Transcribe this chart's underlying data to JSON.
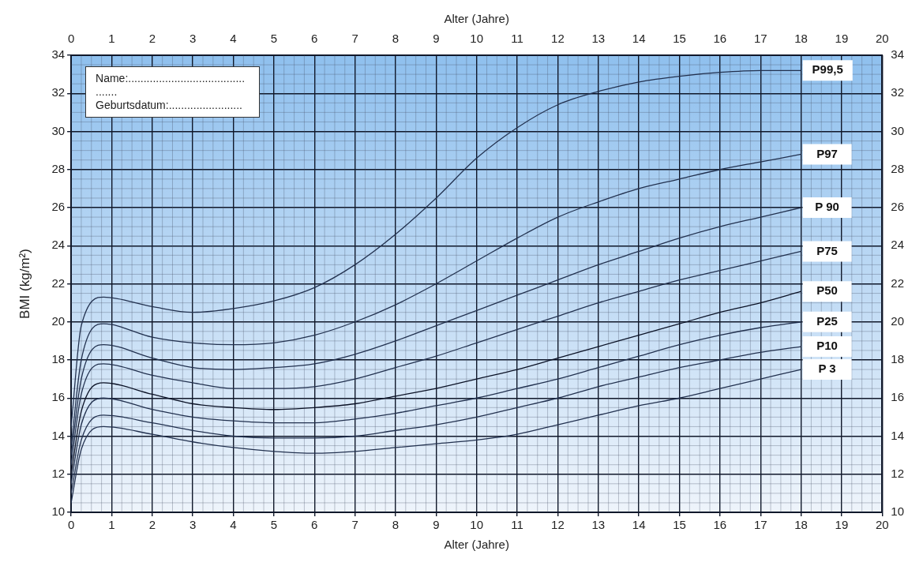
{
  "chart_data": {
    "type": "line",
    "xlabel": "Alter (Jahre)",
    "x2label": "Alter (Jahre)",
    "ylabel": "BMI (kg/m²)",
    "x": [
      0,
      0.25,
      0.8,
      2,
      3,
      4,
      5,
      6,
      7,
      8,
      9,
      10,
      11,
      12,
      13,
      14,
      15,
      16,
      17,
      18
    ],
    "series": [
      {
        "name": "P99,5",
        "color": "#22314f",
        "values": [
          14.5,
          19.8,
          21.3,
          20.8,
          20.5,
          20.7,
          21.1,
          21.8,
          23.0,
          24.6,
          26.5,
          28.6,
          30.2,
          31.4,
          32.1,
          32.6,
          32.9,
          33.1,
          33.2,
          33.2
        ]
      },
      {
        "name": "P97",
        "color": "#22314f",
        "values": [
          13.5,
          18.0,
          19.9,
          19.2,
          18.9,
          18.8,
          18.9,
          19.3,
          20.0,
          20.9,
          22.0,
          23.2,
          24.4,
          25.5,
          26.3,
          27.0,
          27.5,
          28.0,
          28.4,
          28.8
        ]
      },
      {
        "name": "P 90",
        "color": "#22314f",
        "values": [
          13.0,
          17.0,
          18.8,
          18.1,
          17.6,
          17.5,
          17.6,
          17.8,
          18.3,
          19.0,
          19.8,
          20.6,
          21.4,
          22.2,
          23.0,
          23.7,
          24.4,
          25.0,
          25.5,
          26.0
        ]
      },
      {
        "name": "P75",
        "color": "#22314f",
        "values": [
          12.5,
          16.2,
          17.8,
          17.2,
          16.8,
          16.5,
          16.5,
          16.6,
          17.0,
          17.6,
          18.2,
          18.9,
          19.6,
          20.3,
          21.0,
          21.6,
          22.2,
          22.7,
          23.2,
          23.7
        ]
      },
      {
        "name": "P50",
        "color": "#0b1226",
        "values": [
          12.0,
          15.3,
          16.8,
          16.2,
          15.7,
          15.5,
          15.4,
          15.5,
          15.7,
          16.1,
          16.5,
          17.0,
          17.5,
          18.1,
          18.7,
          19.3,
          19.9,
          20.5,
          21.0,
          21.6
        ]
      },
      {
        "name": "P25",
        "color": "#22314f",
        "values": [
          11.5,
          14.6,
          16.0,
          15.4,
          15.0,
          14.8,
          14.7,
          14.7,
          14.9,
          15.2,
          15.6,
          16.0,
          16.5,
          17.0,
          17.6,
          18.2,
          18.8,
          19.3,
          19.7,
          20.0
        ]
      },
      {
        "name": "P10",
        "color": "#22314f",
        "values": [
          11.0,
          13.8,
          15.1,
          14.7,
          14.3,
          14.0,
          13.9,
          13.9,
          14.0,
          14.3,
          14.6,
          15.0,
          15.5,
          16.0,
          16.6,
          17.1,
          17.6,
          18.0,
          18.4,
          18.7
        ]
      },
      {
        "name": "P 3",
        "color": "#22314f",
        "values": [
          10.5,
          13.3,
          14.5,
          14.1,
          13.7,
          13.4,
          13.2,
          13.1,
          13.2,
          13.4,
          13.6,
          13.8,
          14.1,
          14.6,
          15.1,
          15.6,
          16.0,
          16.5,
          17.0,
          17.5
        ]
      }
    ],
    "xlim": [
      0,
      20
    ],
    "xticks": [
      0,
      1,
      2,
      3,
      4,
      5,
      6,
      7,
      8,
      9,
      10,
      11,
      12,
      13,
      14,
      15,
      16,
      17,
      18,
      19,
      20
    ],
    "x2lim": [
      0,
      20
    ],
    "x2ticks": [
      0,
      1,
      2,
      3,
      4,
      5,
      6,
      7,
      8,
      9,
      10,
      11,
      12,
      13,
      14,
      15,
      16,
      17,
      18,
      19,
      20
    ],
    "ylim": [
      10,
      34
    ],
    "yticks": [
      10,
      12,
      14,
      16,
      18,
      20,
      22,
      24,
      26,
      28,
      30,
      32,
      34
    ],
    "y2lim": [
      10,
      34
    ],
    "y2ticks": [
      10,
      12,
      14,
      16,
      18,
      20,
      22,
      24,
      26,
      28,
      30,
      32,
      34
    ],
    "grid": true,
    "legend": false,
    "marker": "none",
    "line_style": "solid",
    "annotations": [
      "Name:......................................",
      ".......",
      "Geburtsdatum:........................"
    ]
  }
}
